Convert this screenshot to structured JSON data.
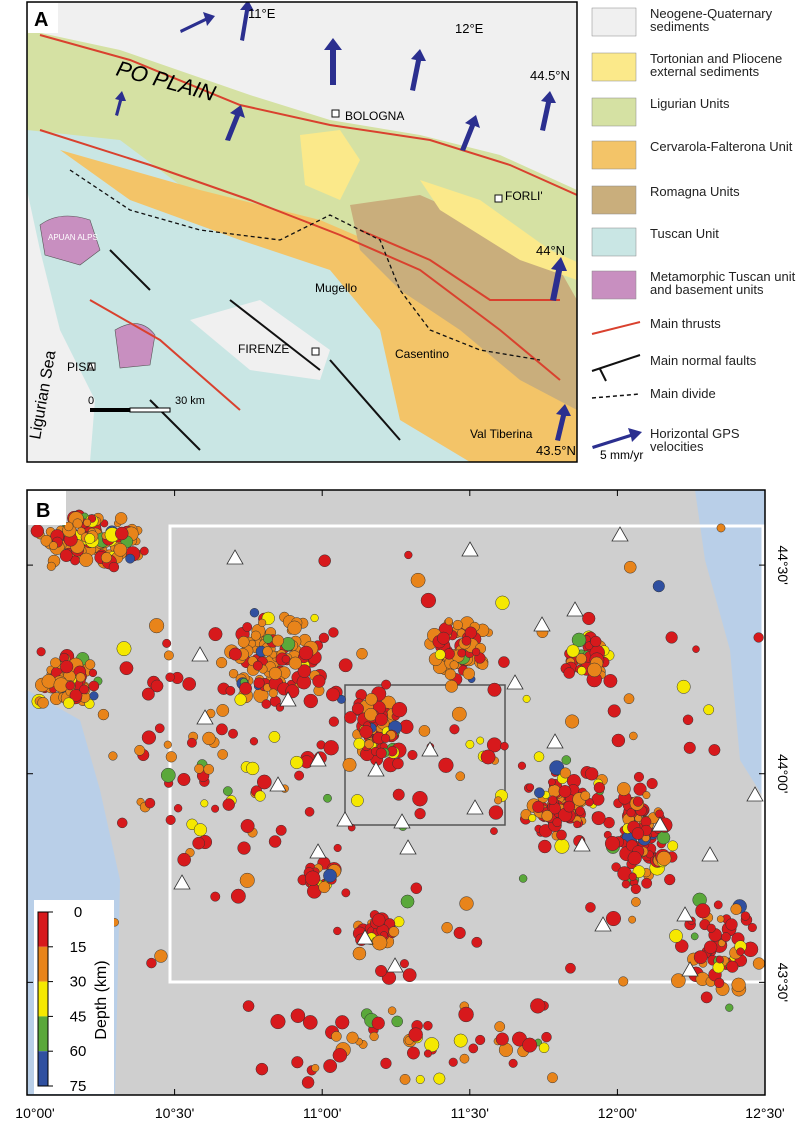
{
  "panel_a": {
    "label": "A",
    "map_labels": [
      "11°E",
      "12°E",
      "44.5°N",
      "44°N",
      "43.5°N",
      "PO PLAIN",
      "BOLOGNA",
      "FORLI'",
      "APUAN ALPS",
      "Mugello",
      "FIRENZE",
      "Casentino",
      "PISA",
      "Val Tiberina",
      "Ligurian Sea",
      "0",
      "30 km",
      "5 mm/yr"
    ],
    "legend": [
      {
        "text": "Neogene-Quaternary sediments",
        "color": "#f0f0f0"
      },
      {
        "text": "Tortonian and Pliocene external sediments",
        "color": "#fbe98a"
      },
      {
        "text": "Ligurian Units",
        "color": "#d5e1a3"
      },
      {
        "text": "Cervarola-Falterona Unit",
        "color": "#f3c468"
      },
      {
        "text": "Romagna Units",
        "color": "#c9ae7c"
      },
      {
        "text": "Tuscan Unit",
        "color": "#c9e6e4"
      },
      {
        "text": "Metamorphic Tuscan unit and basement units",
        "color": "#c88fc0"
      },
      {
        "text": "Main thrusts",
        "color": "#d9412e"
      },
      {
        "text": "Main normal faults",
        "color": "#111111"
      },
      {
        "text": "Main divide",
        "color": "#111111"
      },
      {
        "text": "Horizontal GPS velocities",
        "color": "#2b2f8f"
      }
    ]
  },
  "panel_b": {
    "label": "B",
    "xlim": [
      10,
      12.5
    ],
    "ylim": [
      43.23,
      44.68
    ],
    "lon_ticks": [
      {
        "value": 10,
        "label": "10°00'"
      },
      {
        "value": 10.5,
        "label": "10°30'"
      },
      {
        "value": 11,
        "label": "11°00'"
      },
      {
        "value": 11.5,
        "label": "11°30'"
      },
      {
        "value": 12,
        "label": "12°00'"
      },
      {
        "value": 12.5,
        "label": "12°30'"
      }
    ],
    "lat_ticks": [
      {
        "value": 44.5,
        "label": "44°30'"
      },
      {
        "value": 44,
        "label": "44°00'"
      },
      {
        "value": 43.5,
        "label": "43°30'"
      }
    ],
    "depth": {
      "title": "Depth (km)",
      "lim": [
        0,
        75
      ],
      "ticks": [
        0,
        15,
        30,
        45,
        60,
        75
      ],
      "colors": [
        "#d7191c",
        "#e8841a",
        "#f5e800",
        "#5aa83a",
        "#3050a0"
      ]
    }
  }
}
